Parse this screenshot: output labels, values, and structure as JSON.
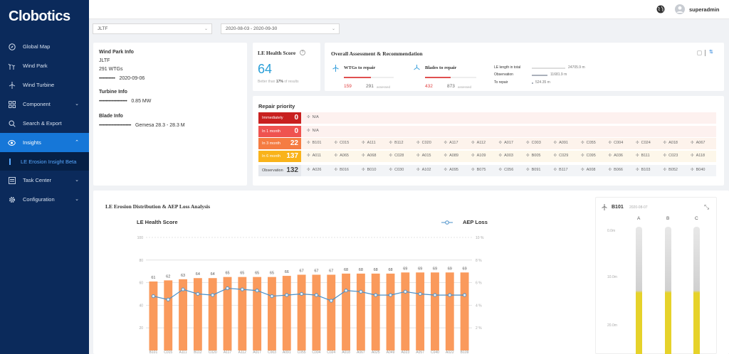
{
  "app": {
    "logo": "Clobotics"
  },
  "sidebar": {
    "items": [
      {
        "label": "Global Map",
        "icon": "compass-icon"
      },
      {
        "label": "Wind Park",
        "icon": "wind-park-icon"
      },
      {
        "label": "Wind Turbine",
        "icon": "wind-turbine-icon"
      },
      {
        "label": "Component",
        "icon": "component-icon"
      },
      {
        "label": "Search & Export",
        "icon": "search-icon"
      },
      {
        "label": "Insights",
        "icon": "eye-icon"
      },
      {
        "label": "LE Erosion Insight Beta"
      },
      {
        "label": "Task Center",
        "icon": "task-icon"
      },
      {
        "label": "Configuration",
        "icon": "gear-icon"
      }
    ]
  },
  "topbar": {
    "username": "superadmin"
  },
  "filters": {
    "park": "JLTF",
    "date_range": "2020-08-03 - 2020-09-30"
  },
  "wind_park_info": {
    "title": "Wind Park Info",
    "name": "JLTF",
    "wtgs": "291 WTGs",
    "date_mask": "••••••••••••",
    "date": "2020-09-06",
    "turbine_title": "Turbine Info",
    "turbine_mask": "•••••••••••••••••••••",
    "turbine_power": "0.85 MW",
    "blade_title": "Blade Info",
    "blade_mask": "••••••••••••••••••••••••",
    "blade_model": "Gemesa 28.3 - 28.3 M"
  },
  "le_health": {
    "title": "LE Health Score",
    "score": "64",
    "note_prefix": "Better than",
    "note_pct": "17%",
    "note_suffix": "of results"
  },
  "assessment": {
    "title": "Overall Assessment & Recommendation",
    "wtg_label": "WTGs to repair",
    "wtg_count": "159",
    "wtg_total": "291",
    "wtg_unit": "assessed",
    "wtg_fraction": 0.546,
    "blade_label": "Blades to repair",
    "blade_count": "432",
    "blade_total": "873",
    "blade_unit": "assessed",
    "blade_fraction": 0.495,
    "le_total_label": "LE length in total",
    "le_total_value": "24705.9 m",
    "observation_label": "Observation",
    "observation_value": "11681.9 m",
    "repair_label": "To repair",
    "repair_value": "524.35 m"
  },
  "repair_priority": {
    "title": "Repair priority",
    "rows": [
      {
        "label": "Immediately",
        "count": "0",
        "color": "#c8201f",
        "bg": "#fdf1ef",
        "turbines": [
          "N/A"
        ]
      },
      {
        "label": "In 1 month",
        "count": "0",
        "color": "#ef5350",
        "bg": "#fdf1ef",
        "turbines": [
          "N/A"
        ]
      },
      {
        "label": "In 3 month",
        "count": "22",
        "color": "#f57c42",
        "bg": "#fdf3ec",
        "turbines": [
          "B101",
          "C015",
          "A111",
          "B112",
          "C020",
          "A117",
          "A112",
          "A017",
          "C003",
          "A091",
          "C055",
          "C004",
          "C024",
          "A018",
          "A067"
        ]
      },
      {
        "label": "In 6 month",
        "count": "137",
        "color": "#f9b31a",
        "bg": "#fdf7ea",
        "turbines": [
          "A011",
          "A065",
          "A068",
          "C028",
          "A015",
          "A089",
          "A109",
          "A003",
          "B005",
          "C029",
          "C095",
          "A036",
          "B111",
          "C023",
          "A118"
        ]
      },
      {
        "label": "Observation",
        "count": "132",
        "color": "#e6e9ee",
        "bg": "#f2f4f7",
        "turbines": [
          "A026",
          "B016",
          "B010",
          "C030",
          "A102",
          "A095",
          "B075",
          "C056",
          "B091",
          "B117",
          "A008",
          "B066",
          "B103",
          "B052",
          "B040"
        ]
      }
    ]
  },
  "analysis": {
    "title": "LE Erosion Distribution & AEP Loss Analysis"
  },
  "chart_data": {
    "type": "bar",
    "ylabel": "LE Health Score",
    "y2label": "AEP Loss",
    "ylim": [
      0,
      100
    ],
    "y2lim": [
      0,
      10
    ],
    "yticks": [
      "100",
      "80",
      "60",
      "40",
      "20"
    ],
    "y2ticks": [
      "10 %",
      "8 %",
      "6 %",
      "4 %",
      "2 %"
    ],
    "categories": [
      "B101",
      "C015",
      "A111",
      "B112",
      "C020",
      "A117",
      "A112",
      "A017",
      "C003",
      "A091",
      "C055",
      "C004",
      "C024",
      "A018",
      "A067",
      "A025",
      "A049",
      "A023",
      "A057",
      "C040",
      "A022",
      "B109"
    ],
    "series": [
      {
        "name": "LE Health Score",
        "type": "bar",
        "color": "#fa9a5c",
        "values": [
          61,
          62,
          63,
          64,
          64,
          65,
          65,
          65,
          65,
          66,
          67,
          67,
          67,
          68,
          68,
          68,
          68,
          69,
          69,
          69,
          69,
          69
        ]
      },
      {
        "name": "AEP Loss",
        "type": "line",
        "color": "#4a90c9",
        "values": [
          4.8,
          4.5,
          5.4,
          5.0,
          4.9,
          5.5,
          5.4,
          5.3,
          4.8,
          4.9,
          5.0,
          4.9,
          4.4,
          5.3,
          5.2,
          4.9,
          4.9,
          5.2,
          5.0,
          4.9,
          4.9,
          4.9
        ]
      }
    ]
  },
  "blade_panel": {
    "turbine": "B101",
    "date": "2020-08-07",
    "blades": [
      "A",
      "B",
      "C"
    ],
    "scale": [
      "0.0m",
      "10.0m",
      "20.0m"
    ]
  }
}
